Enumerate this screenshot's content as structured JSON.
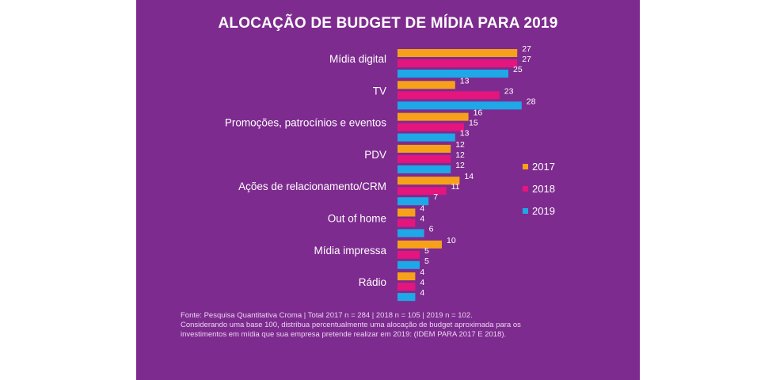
{
  "chart_data": {
    "type": "bar",
    "orientation": "horizontal",
    "title": "ALOCAÇÃO DE BUDGET DE MÍDIA PARA 2019",
    "categories": [
      "Mídia digital",
      "TV",
      "Promoções, patrocínios e eventos",
      "PDV",
      "Ações de relacionamento/CRM",
      "Out of home",
      "Mídia impressa",
      "Rádio"
    ],
    "series": [
      {
        "name": "2017",
        "color": "#f7a11a",
        "values": [
          27,
          13,
          16,
          12,
          14,
          4,
          10,
          4
        ]
      },
      {
        "name": "2018",
        "color": "#e5157e",
        "values": [
          27,
          23,
          15,
          12,
          11,
          4,
          5,
          4
        ]
      },
      {
        "name": "2019",
        "color": "#1ea8e8",
        "values": [
          25,
          28,
          13,
          12,
          7,
          6,
          5,
          4
        ]
      }
    ],
    "value_labels": [
      [
        "27",
        "13",
        "16",
        "12",
        "14",
        "4",
        "10",
        "4"
      ],
      [
        "27",
        "23",
        "15",
        "12",
        "11",
        "4",
        "5",
        "4"
      ],
      [
        "25",
        "28",
        "13",
        "12",
        "7",
        "6",
        "5",
        "4"
      ]
    ],
    "xlim": [
      0,
      30
    ],
    "legend_position": "right",
    "grid": false
  },
  "background_color": "#7e2b8f",
  "footnote": {
    "line1": "Fonte: Pesquisa Quantitativa Croma | Total 2017 n = 284 | 2018 n = 105 | 2019 n = 102.",
    "line2": "Considerando uma base 100, distribua percentualmente uma alocação de budget aproximada para os",
    "line3": "investimentos em mídia que sua empresa pretende realizar em 2019: (IDEM PARA 2017 E 2018)."
  }
}
